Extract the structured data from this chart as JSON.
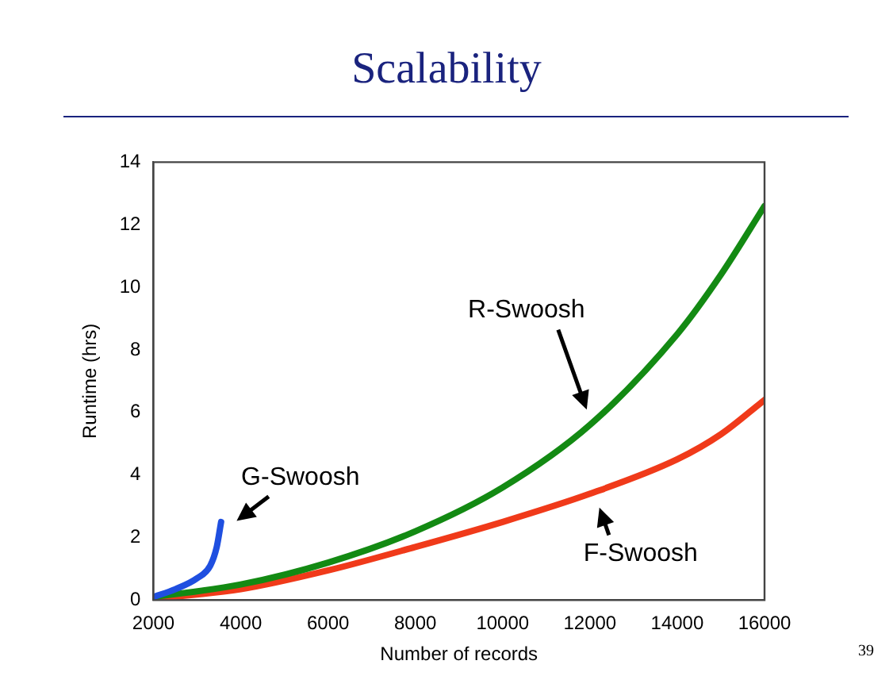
{
  "chart_data": {
    "type": "line",
    "title": "Scalability",
    "xlabel": "Number of records",
    "ylabel": "Runtime (hrs)",
    "xlim": [
      2000,
      16000
    ],
    "xticks": [
      2000,
      4000,
      6000,
      8000,
      10000,
      12000,
      14000,
      16000
    ],
    "ylim": [
      0,
      14
    ],
    "yticks": [
      0,
      2,
      4,
      6,
      8,
      10,
      12,
      14
    ],
    "grid": false,
    "legend": false,
    "marker": "none",
    "line_style": "solid",
    "annotations": [
      "39"
    ],
    "series": [
      {
        "name": "G-Swoosh",
        "color": "#1f4fe0",
        "x": [
          2000,
          2500,
          3000,
          3300,
          3450,
          3550
        ],
        "values": [
          0.1,
          0.35,
          0.7,
          1.1,
          1.7,
          2.5
        ]
      },
      {
        "name": "R-Swoosh",
        "color": "#138a13",
        "x": [
          2000,
          4000,
          6000,
          8000,
          10000,
          12000,
          14000,
          15000,
          16000
        ],
        "values": [
          0.1,
          0.5,
          1.2,
          2.2,
          3.6,
          5.6,
          8.5,
          10.4,
          12.6
        ]
      },
      {
        "name": "F-Swoosh",
        "color": "#f03a1a",
        "x": [
          2000,
          4000,
          6000,
          8000,
          10000,
          12000,
          14000,
          15000,
          16000
        ],
        "values": [
          0.05,
          0.35,
          0.95,
          1.7,
          2.5,
          3.4,
          4.5,
          5.3,
          6.4
        ]
      }
    ]
  }
}
